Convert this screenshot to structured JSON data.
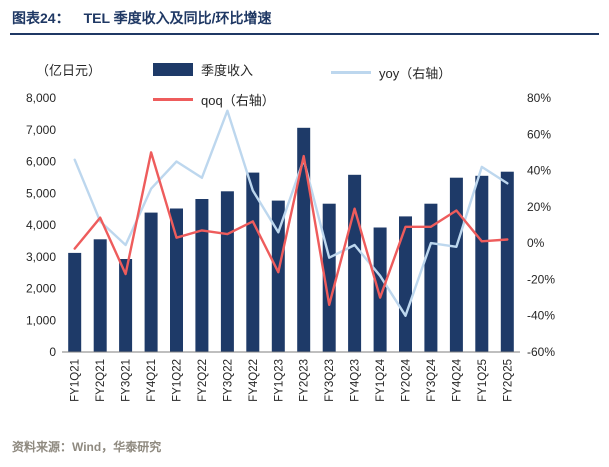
{
  "header": {
    "label": "图表24：",
    "title": "TEL 季度收入及同比/环比增速"
  },
  "unit_label": "（亿日元）",
  "legend": {
    "revenue": "季度收入",
    "yoy": "yoy（右轴）",
    "qoq": "qoq（右轴）"
  },
  "footer": {
    "source": "资料来源：Wind，华泰研究"
  },
  "colors": {
    "bar": "#1E3A68",
    "yoy_line": "#BDD7EE",
    "qoq_line": "#EE5C5C",
    "title": "#1F3864",
    "underline": "#1F3864",
    "axis_text": "#262626",
    "axis_line": "#7f7f7f",
    "footer_text": "#8F8A80"
  },
  "chart_data": {
    "type": "bar",
    "title": "TEL 季度收入及同比/环比增速",
    "xlabel": "",
    "ylabel_left": "亿日元",
    "ylabel_right": "%",
    "grid": false,
    "legend_position": "top",
    "categories": [
      "FY1Q21",
      "FY2Q21",
      "FY3Q21",
      "FY4Q21",
      "FY1Q22",
      "FY2Q22",
      "FY3Q22",
      "FY4Q22",
      "FY1Q23",
      "FY2Q23",
      "FY3Q23",
      "FY4Q23",
      "FY1Q24",
      "FY2Q24",
      "FY3Q24",
      "FY4Q24",
      "FY1Q25",
      "FY2Q25"
    ],
    "series": [
      {
        "name": "季度收入",
        "type": "bar",
        "axis": "left",
        "color": "#1E3A68",
        "values": [
          3120,
          3550,
          2930,
          4390,
          4520,
          4820,
          5060,
          5650,
          4770,
          7060,
          4670,
          5580,
          3920,
          4270,
          4670,
          5490,
          5550,
          5680
        ]
      },
      {
        "name": "yoy（右轴）",
        "type": "line",
        "axis": "right",
        "color": "#BDD7EE",
        "values": [
          46,
          12,
          -1,
          30,
          45,
          36,
          73,
          29,
          6,
          46,
          -8,
          -1,
          -18,
          -40,
          0,
          -2,
          42,
          33
        ]
      },
      {
        "name": "qoq（右轴）",
        "type": "line",
        "axis": "right",
        "color": "#EE5C5C",
        "values": [
          -3,
          14,
          -17,
          50,
          3,
          7,
          5,
          12,
          -16,
          48,
          -34,
          19,
          -30,
          9,
          9,
          18,
          1,
          2
        ]
      }
    ],
    "left_axis": {
      "min": 0,
      "max": 8000,
      "ticks": [
        "0",
        "1,000",
        "2,000",
        "3,000",
        "4,000",
        "5,000",
        "6,000",
        "7,000",
        "8,000"
      ]
    },
    "right_axis": {
      "min": -60,
      "max": 80,
      "ticks": [
        "-60%",
        "-40%",
        "-20%",
        "0%",
        "20%",
        "40%",
        "60%",
        "80%"
      ]
    }
  }
}
